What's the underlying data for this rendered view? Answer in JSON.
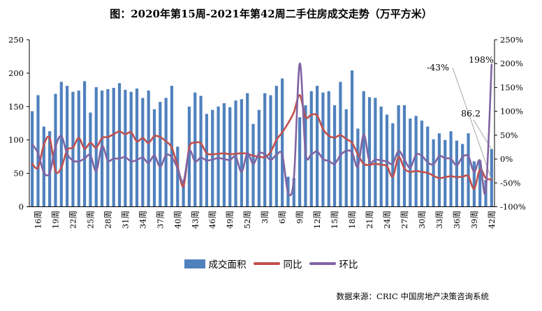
{
  "title": "图：2020年第15周-2021年第42周二手住房成交走势（万平方米）",
  "source_note": "数据来源：CRIC 中国房地产决策咨询系统",
  "legend": {
    "bar_label": "成交面积",
    "yoy_label": "同比",
    "wow_label": "环比"
  },
  "colors": {
    "bar": "#4F81BD",
    "yoy": "#C0504D",
    "wow": "#8064A2",
    "axis": "#000000",
    "leader": "#A6A6A6",
    "background": "#FFFFFF"
  },
  "chart_data": {
    "type": "bar",
    "subtype": "bar+line combo, dual axis",
    "n_points": 80,
    "week_range": {
      "year_2020_weeks": [
        15,
        52
      ],
      "year_2021_weeks": [
        1,
        42
      ]
    },
    "x_tick_labels": [
      "16周",
      "19周",
      "22周",
      "25周",
      "28周",
      "31周",
      "34周",
      "37周",
      "40周",
      "43周",
      "46周",
      "49周",
      "52周",
      "3周",
      "6周",
      "9周",
      "12周",
      "15周",
      "18周",
      "21周",
      "24周",
      "27周",
      "30周",
      "33周",
      "36周",
      "39周",
      "42周"
    ],
    "x_tick_indices": [
      1,
      4,
      7,
      10,
      13,
      16,
      19,
      22,
      25,
      28,
      31,
      34,
      37,
      40,
      43,
      46,
      49,
      52,
      55,
      58,
      61,
      64,
      67,
      70,
      73,
      76,
      79
    ],
    "left_axis": {
      "min": 0,
      "max": 250,
      "step": 50,
      "ticks": [
        "0",
        "50",
        "100",
        "150",
        "200",
        "250"
      ]
    },
    "right_axis": {
      "min": -100,
      "max": 250,
      "step": 50,
      "ticks": [
        "-100%",
        "-50%",
        "0%",
        "50%",
        "100%",
        "150%",
        "200%",
        "250%"
      ]
    },
    "grid": "off",
    "legend_position": "bottom-center",
    "series": [
      {
        "name": "成交面积",
        "type": "bar",
        "axis": "left",
        "unit": "万平方米",
        "values": [
          143,
          167,
          120,
          113,
          169,
          187,
          181,
          172,
          174,
          188,
          141,
          179,
          174,
          176,
          178,
          185,
          175,
          172,
          177,
          163,
          174,
          146,
          157,
          163,
          181,
          90,
          38,
          150,
          171,
          166,
          139,
          145,
          150,
          155,
          149,
          159,
          161,
          170,
          124,
          145,
          170,
          167,
          181,
          192,
          45,
          43,
          134,
          152,
          173,
          181,
          171,
          173,
          152,
          187,
          146,
          204,
          117,
          173,
          164,
          163,
          150,
          138,
          125,
          152,
          152,
          132,
          136,
          129,
          120,
          101,
          110,
          100,
          113,
          99,
          94,
          110,
          68,
          69,
          40,
          86.2
        ]
      },
      {
        "name": "同比",
        "type": "line",
        "axis": "right",
        "unit": "%",
        "values": [
          -10,
          -18,
          30,
          44,
          -25,
          -18,
          19,
          24,
          44,
          22,
          34,
          24,
          44,
          46,
          52,
          58,
          52,
          56,
          37,
          44,
          34,
          48,
          46,
          37,
          24,
          -15,
          -57,
          24,
          34,
          33,
          12,
          10,
          11,
          12,
          10,
          11,
          12,
          11,
          7,
          5,
          4,
          15,
          40,
          56,
          75,
          98,
          134,
          88,
          93,
          91,
          63,
          49,
          45,
          50,
          42,
          34,
          10,
          -10,
          -12,
          -10,
          -12,
          -15,
          -37,
          4,
          -20,
          -27,
          -25,
          -27,
          -29,
          -35,
          -40,
          -38,
          -36,
          -38,
          -37,
          -36,
          -62,
          -22,
          -40,
          -43
        ]
      },
      {
        "name": "环比",
        "type": "line",
        "axis": "right",
        "unit": "%",
        "values": [
          31,
          12,
          -28,
          -29,
          26,
          48,
          11,
          -3,
          -5,
          1,
          8,
          -25,
          27,
          -3,
          1,
          1,
          4,
          -5,
          -2,
          3,
          -8,
          7,
          -16,
          8,
          4,
          -20,
          -47,
          17,
          -5,
          3,
          -3,
          -1,
          2,
          0,
          -2,
          5,
          -27,
          12,
          -10,
          12,
          10,
          -2,
          9,
          9,
          -70,
          -40,
          200,
          14,
          10,
          16,
          0,
          -4,
          -10,
          8,
          17,
          14,
          -16,
          51,
          -5,
          -1,
          -3,
          -5,
          -10,
          17,
          -1,
          -18,
          9,
          7,
          -7,
          -11,
          6,
          2,
          0,
          -13,
          4,
          6,
          -27,
          -3,
          -66,
          198
        ]
      }
    ],
    "annotations": [
      {
        "text": "-43%",
        "target_series": "同比",
        "target_index": 79
      },
      {
        "text": "198%",
        "target_series": "环比",
        "target_index": 79
      },
      {
        "text": "86.2",
        "target_series": "成交面积",
        "target_index": 79
      }
    ]
  }
}
